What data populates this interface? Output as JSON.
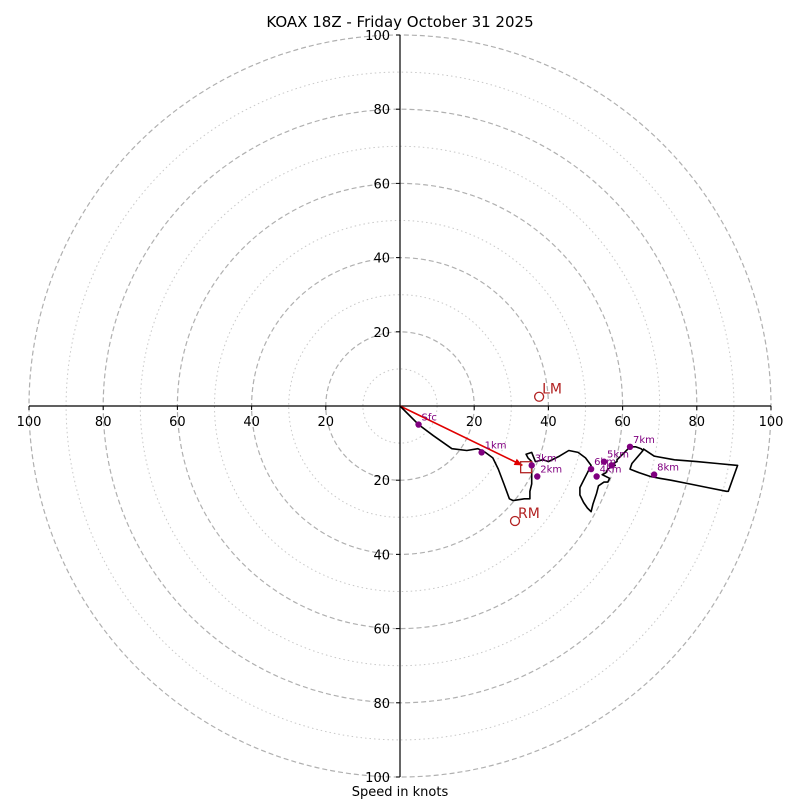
{
  "chart_data": {
    "type": "hodograph",
    "title": "KOAX 18Z - Friday October 31 2025",
    "xlabel": "Speed in knots",
    "range": [
      -100,
      100
    ],
    "ring_major": [
      20,
      40,
      60,
      80,
      100
    ],
    "ring_minor": [
      10,
      30,
      50,
      70,
      90
    ],
    "x_tick_labels": [
      "100",
      "80",
      "60",
      "40",
      "20",
      "20",
      "40",
      "60",
      "80",
      "100"
    ],
    "x_tick_values": [
      -100,
      -80,
      -60,
      -40,
      -20,
      20,
      40,
      60,
      80,
      100
    ],
    "y_tick_labels": [
      "100",
      "80",
      "60",
      "40",
      "20",
      "20",
      "40",
      "60",
      "80",
      "100"
    ],
    "y_tick_values": [
      100,
      80,
      60,
      40,
      20,
      -20,
      -40,
      -60,
      -80,
      -100
    ],
    "hodograph": [
      [
        0,
        0
      ],
      [
        5,
        -5
      ],
      [
        9,
        -8
      ],
      [
        14,
        -11.5
      ],
      [
        18,
        -12
      ],
      [
        21,
        -11.5
      ],
      [
        23,
        -12.5
      ],
      [
        25,
        -14
      ],
      [
        26.5,
        -17
      ],
      [
        28,
        -21
      ],
      [
        29.5,
        -25
      ],
      [
        30.5,
        -25.5
      ],
      [
        33.5,
        -25
      ],
      [
        35,
        -25
      ],
      [
        35,
        -23
      ],
      [
        35.5,
        -21
      ],
      [
        35.5,
        -18
      ],
      [
        35.5,
        -15
      ],
      [
        34.5,
        -14
      ],
      [
        34,
        -13
      ],
      [
        35.5,
        -12.5
      ],
      [
        36.5,
        -15
      ],
      [
        38.5,
        -14.5
      ],
      [
        40,
        -15
      ],
      [
        43,
        -13.5
      ],
      [
        45.5,
        -12
      ],
      [
        48,
        -12.5
      ],
      [
        50,
        -14
      ],
      [
        51.5,
        -16
      ],
      [
        50.5,
        -18
      ],
      [
        49.5,
        -20
      ],
      [
        48.5,
        -22
      ],
      [
        48.5,
        -24
      ],
      [
        49.5,
        -26
      ],
      [
        50.5,
        -27.5
      ],
      [
        51.5,
        -28.5
      ],
      [
        52,
        -26.5
      ],
      [
        53,
        -23.5
      ],
      [
        53.5,
        -21.5
      ],
      [
        55,
        -20.5
      ],
      [
        56,
        -20.5
      ],
      [
        56.5,
        -19.5
      ],
      [
        54.5,
        -18.5
      ],
      [
        55.5,
        -18
      ],
      [
        56,
        -17
      ],
      [
        57,
        -16.5
      ],
      [
        58,
        -16
      ],
      [
        57.5,
        -15.5
      ],
      [
        58.5,
        -15
      ],
      [
        58.5,
        -14.5
      ],
      [
        60.5,
        -12.5
      ],
      [
        62,
        -11
      ],
      [
        63.5,
        -11
      ],
      [
        65,
        -11.5
      ],
      [
        65.5,
        -12
      ],
      [
        62.5,
        -15.5
      ],
      [
        62,
        -17
      ],
      [
        64.5,
        -18
      ],
      [
        67.5,
        -19
      ],
      [
        70,
        -19.5
      ],
      [
        73,
        -20
      ],
      [
        78,
        -21
      ],
      [
        83,
        -22
      ],
      [
        88,
        -23
      ],
      [
        88.5,
        -23
      ],
      [
        91,
        -16
      ],
      [
        85.5,
        -15.5
      ],
      [
        80,
        -15
      ],
      [
        74,
        -14.5
      ],
      [
        68.5,
        -13.5
      ],
      [
        65.5,
        -11.5
      ]
    ],
    "height_markers": [
      {
        "label": "Sfc",
        "u": 5,
        "v": -5
      },
      {
        "label": "1km",
        "u": 22,
        "v": -12.5
      },
      {
        "label": "2km",
        "u": 37,
        "v": -19
      },
      {
        "label": "3km",
        "u": 35.5,
        "v": -16
      },
      {
        "label": "4km",
        "u": 53,
        "v": -19
      },
      {
        "label": "5km",
        "u": 55,
        "v": -15
      },
      {
        "label": "6km",
        "u": 51.5,
        "v": -17
      },
      {
        "label": "7km",
        "u": 62,
        "v": -11
      },
      {
        "label": "8km",
        "u": 68.5,
        "v": -18.5
      },
      {
        "label": "",
        "u": 57,
        "v": -16
      }
    ],
    "storm_motion": [
      {
        "label": "LM",
        "u": 37.5,
        "v": 2.5
      },
      {
        "label": "RM",
        "u": 31,
        "v": -31
      }
    ],
    "mean_wind": {
      "u": 34,
      "v": -16.5
    },
    "shear_vector": {
      "from": [
        0,
        0
      ],
      "to": [
        33,
        -16
      ]
    },
    "colors": {
      "hodograph": "#000000",
      "markers": "#800080",
      "storm_motion": "#b22222",
      "shear": "#e00000",
      "grid": "#b0b0b0",
      "axes": "#000000"
    }
  }
}
